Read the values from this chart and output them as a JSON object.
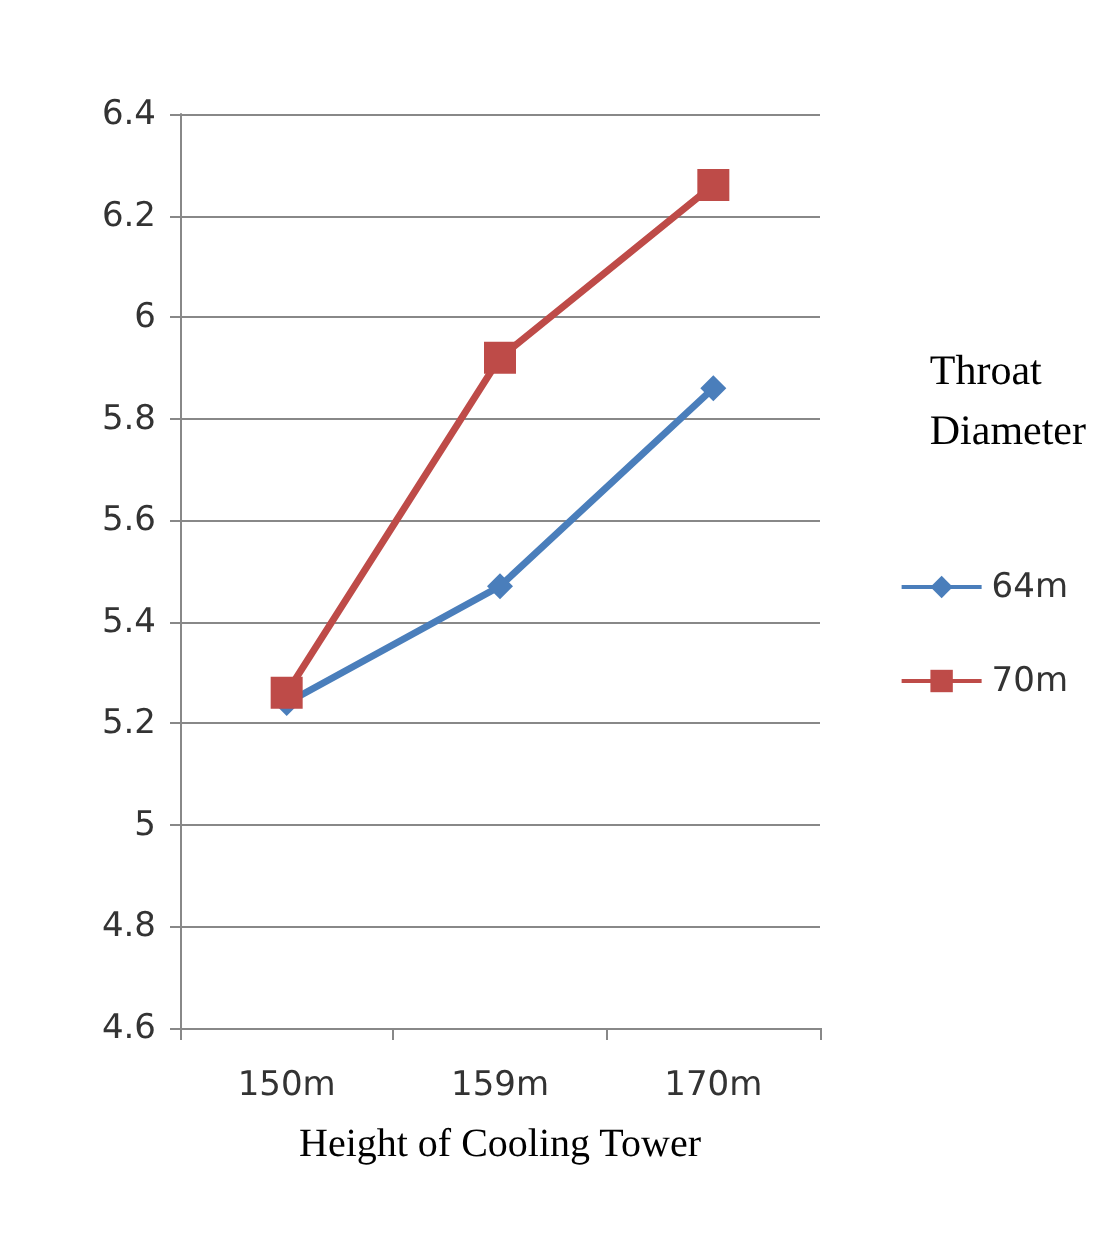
{
  "chart_data": {
    "type": "line",
    "xlabel": "Height of Cooling Tower",
    "legend_title": "Throat Diameter",
    "categories": [
      "150m",
      "159m",
      "170m"
    ],
    "series": [
      {
        "name": "64m",
        "color": "#4a7ebb",
        "values": [
          5.24,
          5.47,
          5.86
        ],
        "marker": "diamond"
      },
      {
        "name": "70m",
        "color": "#be4b48",
        "values": [
          5.26,
          5.92,
          6.26
        ],
        "marker": "square"
      }
    ],
    "ylim": [
      4.6,
      6.4
    ],
    "yticks": [
      4.6,
      4.8,
      5,
      5.2,
      5.4,
      5.6,
      5.8,
      6,
      6.2,
      6.4
    ],
    "grid": "y",
    "legend": "right"
  }
}
